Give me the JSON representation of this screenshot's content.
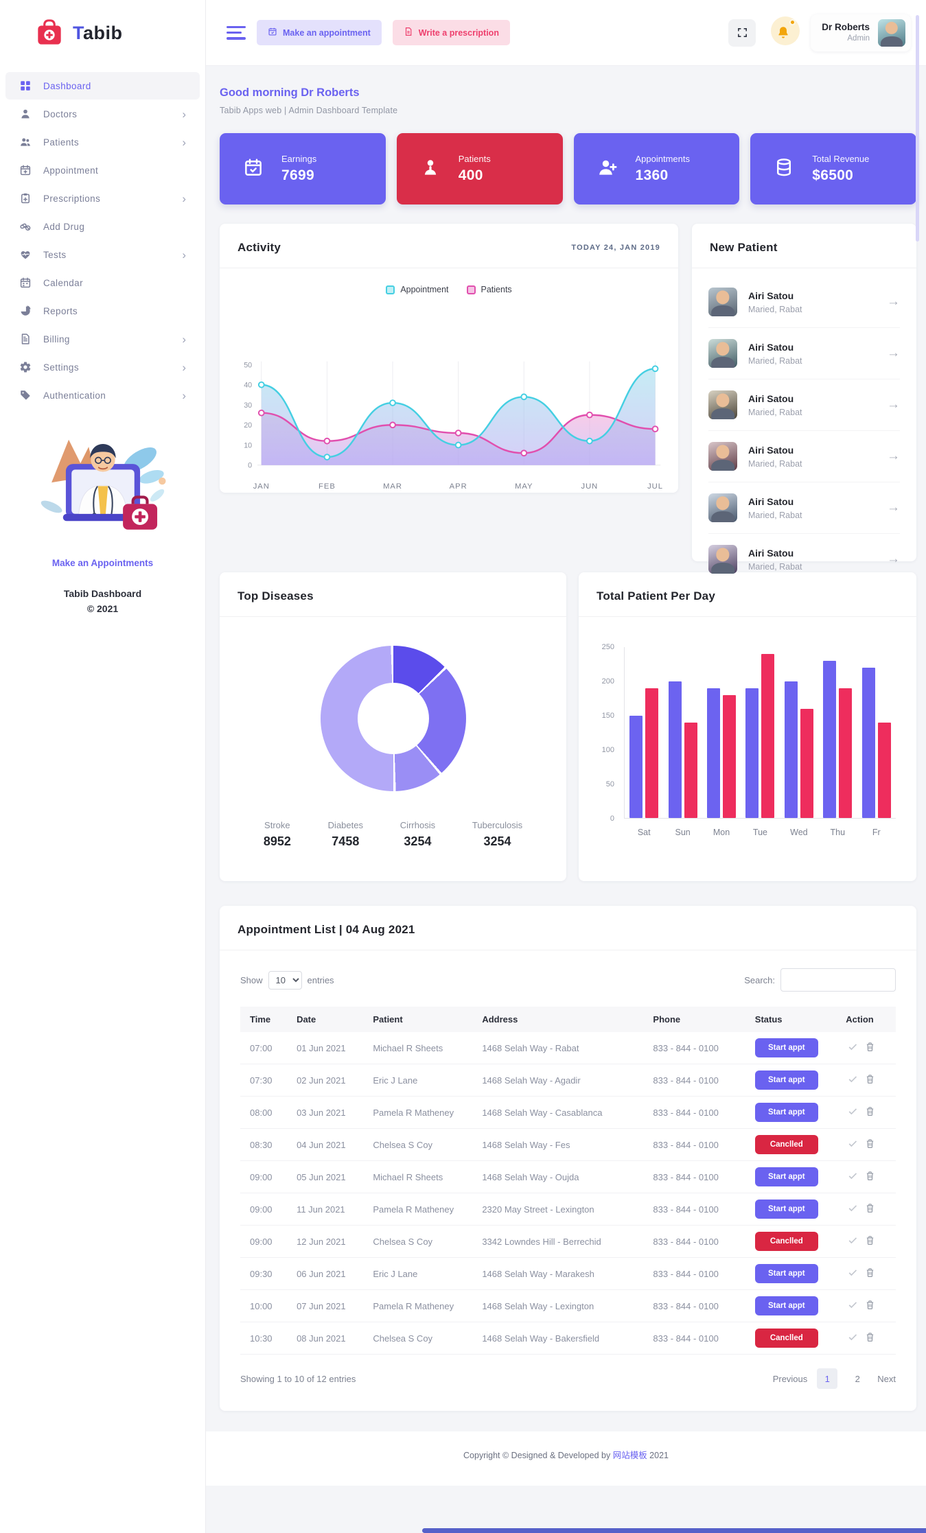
{
  "brand": {
    "logo_accent": "T",
    "logo_rest": "abib"
  },
  "header": {
    "make_appointment": "Make an appointment",
    "write_prescription": "Write a prescription",
    "user_name": "Dr Roberts",
    "user_role": "Admin"
  },
  "sidebar": {
    "items": [
      {
        "label": "Dashboard",
        "icon": "dashboard",
        "active": true,
        "chevron": false
      },
      {
        "label": "Doctors",
        "icon": "doctor",
        "active": false,
        "chevron": true
      },
      {
        "label": "Patients",
        "icon": "patients",
        "active": false,
        "chevron": true
      },
      {
        "label": "Appointment",
        "icon": "appointment",
        "active": false,
        "chevron": false
      },
      {
        "label": "Prescriptions",
        "icon": "prescription",
        "active": false,
        "chevron": true
      },
      {
        "label": "Add Drug",
        "icon": "drug",
        "active": false,
        "chevron": false
      },
      {
        "label": "Tests",
        "icon": "tests",
        "active": false,
        "chevron": true
      },
      {
        "label": "Calendar",
        "icon": "calendar",
        "active": false,
        "chevron": false
      },
      {
        "label": "Reports",
        "icon": "reports",
        "active": false,
        "chevron": false
      },
      {
        "label": "Billing",
        "icon": "billing",
        "active": false,
        "chevron": true
      },
      {
        "label": "Settings",
        "icon": "settings",
        "active": false,
        "chevron": true
      },
      {
        "label": "Authentication",
        "icon": "authentication",
        "active": false,
        "chevron": true
      }
    ],
    "make_appointments_link": "Make an Appointments",
    "footer_line1": "Tabib Dashboard",
    "footer_line2": "© 2021"
  },
  "greeting": {
    "title": "Good morning Dr Roberts",
    "subtitle": "Tabib Apps web | Admin Dashboard Template"
  },
  "stats": [
    {
      "label": "Earnings",
      "value": "7699",
      "icon": "calendar-check",
      "color": "#6a62f0"
    },
    {
      "label": "Patients",
      "value": "400",
      "icon": "patient",
      "color": "#d92e49"
    },
    {
      "label": "Appointments",
      "value": "1360",
      "icon": "person-plus",
      "color": "#6a62f0"
    },
    {
      "label": "Total Revenue",
      "value": "$6500",
      "icon": "database",
      "color": "#6a62f0"
    }
  ],
  "activity": {
    "title": "Activity",
    "date_label": "TODAY 24, JAN 2019"
  },
  "new_patient": {
    "title": "New Patient",
    "items": [
      {
        "name": "Airi Satou",
        "info": "Maried, Rabat"
      },
      {
        "name": "Airi Satou",
        "info": "Maried, Rabat"
      },
      {
        "name": "Airi Satou",
        "info": "Maried, Rabat"
      },
      {
        "name": "Airi Satou",
        "info": "Maried, Rabat"
      },
      {
        "name": "Airi Satou",
        "info": "Maried, Rabat"
      },
      {
        "name": "Airi Satou",
        "info": "Maried, Rabat"
      }
    ],
    "arrow": "→"
  },
  "top_diseases": {
    "title": "Top Diseases"
  },
  "patient_per_day": {
    "title": "Total Patient Per Day"
  },
  "appointments": {
    "title": "Appointment List | 04 Aug 2021",
    "show_label": "Show",
    "page_size": "10",
    "entries_label": "entries",
    "search_label": "Search:",
    "columns": [
      "Time",
      "Date",
      "Patient",
      "Address",
      "Phone",
      "Status",
      "Action"
    ],
    "rows": [
      {
        "time": "07:00",
        "date": "01 Jun 2021",
        "patient": "Michael R Sheets",
        "address": "1468 Selah Way - Rabat",
        "phone": "833 - 844 - 0100",
        "status": {
          "label": "Start appt",
          "variant": "primary"
        }
      },
      {
        "time": "07:30",
        "date": "02 Jun 2021",
        "patient": "Eric J Lane",
        "address": "1468 Selah Way - Agadir",
        "phone": "833 - 844 - 0100",
        "status": {
          "label": "Start appt",
          "variant": "primary"
        }
      },
      {
        "time": "08:00",
        "date": "03 Jun 2021",
        "patient": "Pamela R Matheney",
        "address": "1468 Selah Way - Casablanca",
        "phone": "833 - 844 - 0100",
        "status": {
          "label": "Start appt",
          "variant": "primary"
        }
      },
      {
        "time": "08:30",
        "date": "04 Jun 2021",
        "patient": "Chelsea S Coy",
        "address": "1468 Selah Way - Fes",
        "phone": "833 - 844 - 0100",
        "status": {
          "label": "Canclled",
          "variant": "danger"
        }
      },
      {
        "time": "09:00",
        "date": "05 Jun 2021",
        "patient": "Michael R Sheets",
        "address": "1468 Selah Way - Oujda",
        "phone": "833 - 844 - 0100",
        "status": {
          "label": "Start appt",
          "variant": "primary"
        }
      },
      {
        "time": "09:00",
        "date": "11 Jun 2021",
        "patient": "Pamela R Matheney",
        "address": "2320 May Street - Lexington",
        "phone": "833 - 844 - 0100",
        "status": {
          "label": "Start appt",
          "variant": "primary"
        }
      },
      {
        "time": "09:00",
        "date": "12 Jun 2021",
        "patient": "Chelsea S Coy",
        "address": "3342 Lowndes Hill - Berrechid",
        "phone": "833 - 844 - 0100",
        "status": {
          "label": "Canclled",
          "variant": "danger"
        }
      },
      {
        "time": "09:30",
        "date": "06 Jun 2021",
        "patient": "Eric J Lane",
        "address": "1468 Selah Way - Marakesh",
        "phone": "833 - 844 - 0100",
        "status": {
          "label": "Start appt",
          "variant": "primary"
        }
      },
      {
        "time": "10:00",
        "date": "07 Jun 2021",
        "patient": "Pamela R Matheney",
        "address": "1468 Selah Way - Lexington",
        "phone": "833 - 844 - 0100",
        "status": {
          "label": "Start appt",
          "variant": "primary"
        }
      },
      {
        "time": "10:30",
        "date": "08 Jun 2021",
        "patient": "Chelsea S Coy",
        "address": "1468 Selah Way - Bakersfield",
        "phone": "833 - 844 - 0100",
        "status": {
          "label": "Canclled",
          "variant": "danger"
        }
      }
    ],
    "summary": "Showing 1 to 10 of 12 entries",
    "pagination": {
      "prev": "Previous",
      "pages": [
        "1",
        "2"
      ],
      "active": "1",
      "next": "Next"
    }
  },
  "footer": {
    "pre": "Copyright © Designed & Developed by ",
    "link": "网站模板",
    "post": " 2021"
  },
  "chart_data": [
    {
      "id": "activity",
      "type": "line",
      "title": "Activity",
      "x": [
        "JAN",
        "FEB",
        "MAR",
        "APR",
        "MAY",
        "JUN",
        "JUL"
      ],
      "series": [
        {
          "name": "Appointment",
          "color": "#45cfe2",
          "values": [
            40,
            4,
            31,
            10,
            34,
            12,
            48
          ]
        },
        {
          "name": "Patients",
          "color": "#e14fae",
          "values": [
            26,
            12,
            20,
            16,
            6,
            25,
            18
          ]
        }
      ],
      "ylim": [
        0,
        50
      ],
      "yticks": [
        0,
        10,
        20,
        30,
        40,
        50
      ],
      "grid": "vertical",
      "legend_position": "top-center",
      "area_fill": true
    },
    {
      "id": "top-diseases",
      "type": "pie",
      "donut": true,
      "title": "Top Diseases",
      "segments": [
        {
          "label": "Stroke",
          "value": "8952",
          "pct": 13,
          "color": "#5b4ceb"
        },
        {
          "label": "Diabetes",
          "value": "7458",
          "pct": 26,
          "color": "#7e70f2"
        },
        {
          "label": "Cirrhosis",
          "value": "3254",
          "pct": 11,
          "color": "#9a8ef5"
        },
        {
          "label": "Tuberculosis",
          "value": "3254",
          "pct": 50,
          "color": "#b3a9f8"
        }
      ]
    },
    {
      "id": "patient-per-day",
      "type": "bar",
      "title": "Total Patient Per Day",
      "categories": [
        "Sat",
        "Sun",
        "Mon",
        "Tue",
        "Wed",
        "Thu",
        "Fr"
      ],
      "series": [
        {
          "name": "purple",
          "color": "#6c63f0",
          "values": [
            150,
            200,
            190,
            190,
            200,
            230,
            220
          ]
        },
        {
          "name": "red",
          "color": "#ee2d5d",
          "values": [
            190,
            140,
            180,
            240,
            160,
            190,
            140
          ]
        }
      ],
      "ylim": [
        0,
        250
      ],
      "yticks": [
        0,
        50,
        100,
        150,
        200,
        250
      ],
      "grid": "off"
    }
  ]
}
